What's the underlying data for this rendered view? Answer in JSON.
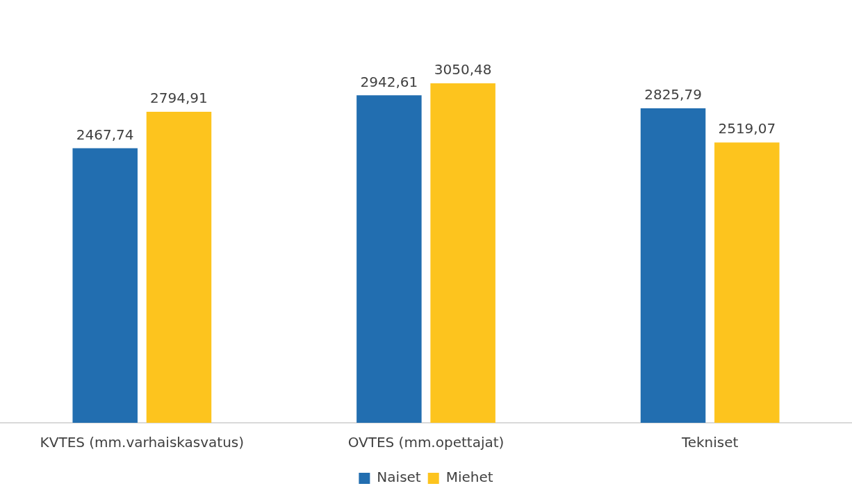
{
  "chart_data": {
    "type": "bar",
    "categories": [
      "KVTES (mm.varhaiskasvatus)",
      "OVTES (mm.opettajat)",
      "Tekniset"
    ],
    "series": [
      {
        "name": "Naiset",
        "color": "#226eb0",
        "values": [
          2467.74,
          2942.61,
          2825.79
        ],
        "value_labels": [
          "2467,74",
          "2942,61",
          "2825,79"
        ]
      },
      {
        "name": "Miehet",
        "color": "#fdc41e",
        "values": [
          2794.91,
          3050.48,
          2519.07
        ],
        "value_labels": [
          "2794,91",
          "3050,48",
          "2519,07"
        ]
      }
    ],
    "tick_labels": "x",
    "grid": false,
    "legend": "bottom"
  }
}
